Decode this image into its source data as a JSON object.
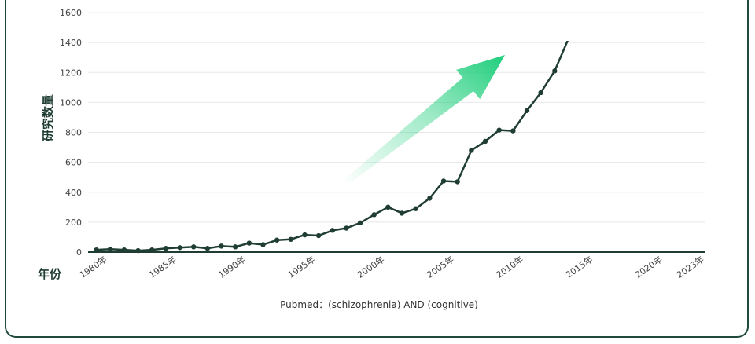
{
  "chart_data": {
    "type": "line",
    "ylabel": "研究数量",
    "xlabel": "年份",
    "caption": "Pubmed：(schizophrenia) AND (cognitive)",
    "ylim": [
      0,
      1600
    ],
    "yticks": [
      0,
      200,
      400,
      600,
      800,
      1000,
      1200,
      1400,
      1600
    ],
    "xlim": [
      1980,
      2023
    ],
    "xticks": [
      {
        "value": 1980,
        "label": "1980年"
      },
      {
        "value": 1985,
        "label": "1985年"
      },
      {
        "value": 1990,
        "label": "1990年"
      },
      {
        "value": 1995,
        "label": "1995年"
      },
      {
        "value": 2000,
        "label": "2000年"
      },
      {
        "value": 2005,
        "label": "2005年"
      },
      {
        "value": 2010,
        "label": "2010年"
      },
      {
        "value": 2015,
        "label": "2015年"
      },
      {
        "value": 2020,
        "label": "2020年"
      },
      {
        "value": 2023,
        "label": "2023年"
      }
    ],
    "grid": true,
    "series": [
      {
        "x": [
          1980,
          1981,
          1982,
          1983,
          1984,
          1985,
          1986,
          1987,
          1988,
          1989,
          1990,
          1991,
          1992,
          1993,
          1994,
          1995,
          1996,
          1997,
          1998,
          1999,
          2000,
          2001,
          2002,
          2003,
          2004,
          2005,
          2006,
          2007,
          2008,
          2009,
          2010,
          2011,
          2012,
          2013
        ],
        "values": [
          15,
          20,
          15,
          10,
          15,
          25,
          30,
          35,
          25,
          40,
          35,
          60,
          50,
          80,
          85,
          115,
          110,
          145,
          160,
          195,
          250,
          300,
          260,
          290,
          360,
          475,
          470,
          680,
          740,
          815,
          810,
          945,
          1065,
          1210
        ]
      }
    ],
    "colors": {
      "line": "#1f3d33",
      "marker": "#1f3d33",
      "arrow": "#1fce7c",
      "border": "#1f4a3c",
      "grid": "#e8e8e8",
      "axis": "#1f3d33"
    }
  }
}
